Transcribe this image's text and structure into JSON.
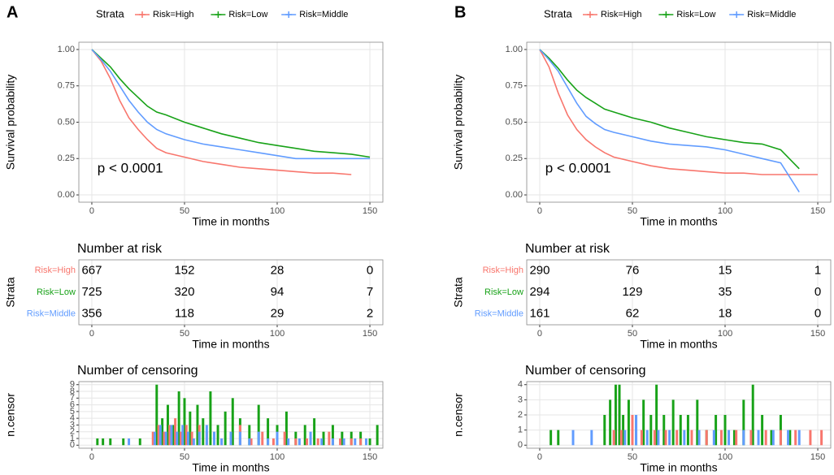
{
  "chart_data": [
    {
      "type": "line",
      "panel": "A",
      "legend_title": "Strata",
      "xlabel": "Time in months",
      "ylabel": "Survival probability",
      "annotation": "p < 0.0001",
      "x": [
        0,
        5,
        10,
        15,
        20,
        25,
        30,
        35,
        40,
        50,
        60,
        70,
        80,
        90,
        100,
        110,
        120,
        130,
        140,
        150
      ],
      "series": [
        {
          "name": "Risk=High",
          "color": "#F8766D",
          "values": [
            1,
            0.92,
            0.8,
            0.65,
            0.53,
            0.45,
            0.38,
            0.32,
            0.29,
            0.26,
            0.23,
            0.21,
            0.19,
            0.18,
            0.17,
            0.16,
            0.15,
            0.15,
            0.14,
            null
          ]
        },
        {
          "name": "Risk=Low",
          "color": "#18A218",
          "values": [
            1,
            0.94,
            0.88,
            0.8,
            0.73,
            0.67,
            0.61,
            0.57,
            0.55,
            0.5,
            0.46,
            0.42,
            0.39,
            0.36,
            0.34,
            0.32,
            0.3,
            0.29,
            0.28,
            0.26
          ]
        },
        {
          "name": "Risk=Middle",
          "color": "#619CFF",
          "values": [
            1,
            0.93,
            0.85,
            0.75,
            0.65,
            0.57,
            0.5,
            0.45,
            0.42,
            0.38,
            0.35,
            0.33,
            0.31,
            0.29,
            0.27,
            0.25,
            0.25,
            0.25,
            0.25,
            0.25
          ]
        }
      ],
      "xlim": [
        -7,
        157
      ],
      "xticks": [
        0,
        50,
        100,
        150
      ],
      "ylim": [
        -0.05,
        1.05
      ],
      "yticks": [
        {
          "value": 0,
          "label": "0.00"
        },
        {
          "value": 0.25,
          "label": "0.25"
        },
        {
          "value": 0.5,
          "label": "0.50"
        },
        {
          "value": 0.75,
          "label": "0.75"
        },
        {
          "value": 1,
          "label": "1.00"
        }
      ],
      "grid": true
    },
    {
      "type": "table",
      "title": "Number at risk",
      "ylabel": "Strata",
      "xlabel": "Time in months",
      "x": [
        0,
        50,
        100,
        150
      ],
      "series": [
        {
          "name": "Risk=High",
          "color": "#F8766D",
          "values": [
            667,
            152,
            28,
            0
          ]
        },
        {
          "name": "Risk=Low",
          "color": "#18A218",
          "values": [
            725,
            320,
            94,
            7
          ]
        },
        {
          "name": "Risk=Middle",
          "color": "#619CFF",
          "values": [
            356,
            118,
            29,
            2
          ]
        }
      ],
      "xlim": [
        -7,
        157
      ],
      "xticks": [
        0,
        50,
        100,
        150
      ],
      "grid": true
    },
    {
      "type": "bar",
      "title": "Number of censoring",
      "ylabel": "n.censor",
      "xlabel": "Time in months",
      "series": [
        {
          "color": "#18A218",
          "x": [
            3,
            6,
            10,
            17,
            26,
            35,
            38,
            41,
            44,
            47,
            50,
            53,
            57,
            60,
            64,
            68,
            72,
            76,
            80,
            85,
            90,
            95,
            100,
            105,
            110,
            115,
            120,
            125,
            130,
            135,
            140,
            145,
            150,
            154
          ],
          "values": [
            1,
            1,
            1,
            1,
            1,
            9,
            4,
            6,
            3,
            8,
            7,
            5,
            6,
            4,
            8,
            3,
            5,
            7,
            4,
            3,
            6,
            4,
            3,
            5,
            2,
            3,
            4,
            2,
            3,
            2,
            2,
            2,
            1,
            3
          ]
        },
        {
          "color": "#F8766D",
          "x": [
            33,
            36,
            39,
            42,
            45,
            48,
            51,
            54,
            58,
            62,
            66,
            70,
            75,
            80,
            86,
            92,
            98,
            104,
            110,
            116,
            122,
            128,
            134,
            140,
            145
          ],
          "values": [
            2,
            3,
            2,
            3,
            4,
            2,
            3,
            2,
            3,
            2,
            2,
            1,
            2,
            3,
            1,
            2,
            1,
            2,
            1,
            1,
            1,
            2,
            1,
            1,
            1
          ]
        },
        {
          "color": "#619CFF",
          "x": [
            20,
            34,
            37,
            40,
            43,
            46,
            49,
            52,
            55,
            58,
            62,
            66,
            70,
            75,
            80,
            85,
            90,
            95,
            100,
            106,
            112,
            118,
            124,
            130,
            136,
            142,
            148
          ],
          "values": [
            1,
            2,
            3,
            2,
            3,
            2,
            3,
            2,
            1,
            2,
            3,
            2,
            1,
            2,
            2,
            1,
            2,
            1,
            2,
            1,
            1,
            2,
            1,
            1,
            1,
            1,
            1
          ]
        }
      ],
      "xlim": [
        -7,
        157
      ],
      "xticks": [
        0,
        50,
        100,
        150
      ],
      "ylim": [
        -0.45,
        9.45
      ],
      "yticks": [
        0,
        1,
        2,
        3,
        4,
        5,
        6,
        7,
        8,
        9
      ],
      "grid": true
    },
    {
      "type": "line",
      "panel": "B",
      "legend_title": "Strata",
      "xlabel": "Time in months",
      "ylabel": "Survival probability",
      "annotation": "p < 0.0001",
      "x": [
        0,
        5,
        10,
        15,
        20,
        25,
        30,
        35,
        40,
        50,
        60,
        70,
        80,
        90,
        100,
        110,
        120,
        130,
        140,
        150
      ],
      "series": [
        {
          "name": "Risk=High",
          "color": "#F8766D",
          "values": [
            1,
            0.88,
            0.7,
            0.55,
            0.45,
            0.38,
            0.33,
            0.29,
            0.26,
            0.23,
            0.2,
            0.18,
            0.17,
            0.16,
            0.15,
            0.15,
            0.14,
            0.14,
            0.14,
            0.14
          ]
        },
        {
          "name": "Risk=Low",
          "color": "#18A218",
          "values": [
            1,
            0.94,
            0.87,
            0.79,
            0.72,
            0.67,
            0.63,
            0.59,
            0.57,
            0.53,
            0.5,
            0.46,
            0.43,
            0.4,
            0.38,
            0.36,
            0.35,
            0.31,
            0.18,
            null
          ]
        },
        {
          "name": "Risk=Middle",
          "color": "#619CFF",
          "values": [
            1,
            0.93,
            0.85,
            0.74,
            0.63,
            0.54,
            0.49,
            0.45,
            0.43,
            0.4,
            0.37,
            0.35,
            0.34,
            0.33,
            0.31,
            0.28,
            0.25,
            0.22,
            0.02,
            null
          ]
        }
      ],
      "xlim": [
        -7,
        157
      ],
      "xticks": [
        0,
        50,
        100,
        150
      ],
      "ylim": [
        -0.05,
        1.05
      ],
      "yticks": [
        {
          "value": 0,
          "label": "0.00"
        },
        {
          "value": 0.25,
          "label": "0.25"
        },
        {
          "value": 0.5,
          "label": "0.50"
        },
        {
          "value": 0.75,
          "label": "0.75"
        },
        {
          "value": 1,
          "label": "1.00"
        }
      ],
      "grid": true
    },
    {
      "type": "table",
      "title": "Number at risk",
      "ylabel": "Strata",
      "xlabel": "Time in months",
      "x": [
        0,
        50,
        100,
        150
      ],
      "series": [
        {
          "name": "Risk=High",
          "color": "#F8766D",
          "values": [
            290,
            76,
            15,
            1
          ]
        },
        {
          "name": "Risk=Low",
          "color": "#18A218",
          "values": [
            294,
            129,
            35,
            0
          ]
        },
        {
          "name": "Risk=Middle",
          "color": "#619CFF",
          "values": [
            161,
            62,
            18,
            0
          ]
        }
      ],
      "xlim": [
        -7,
        157
      ],
      "xticks": [
        0,
        50,
        100,
        150
      ],
      "grid": true
    },
    {
      "type": "bar",
      "title": "Number of censoring",
      "ylabel": "n.censor",
      "xlabel": "Time in months",
      "series": [
        {
          "color": "#18A218",
          "x": [
            6,
            10,
            35,
            38,
            41,
            43,
            45,
            48,
            52,
            56,
            60,
            63,
            67,
            72,
            76,
            80,
            85,
            90,
            95,
            100,
            105,
            110,
            115,
            120,
            125,
            130,
            135
          ],
          "values": [
            1,
            1,
            2,
            3,
            4,
            4,
            2,
            3,
            2,
            3,
            2,
            4,
            2,
            3,
            2,
            2,
            3,
            1,
            2,
            2,
            1,
            3,
            4,
            2,
            1,
            2,
            1
          ]
        },
        {
          "color": "#619CFF",
          "x": [
            18,
            28,
            40,
            46,
            52,
            58,
            64,
            70,
            78,
            86,
            94,
            102,
            110,
            118,
            126,
            134,
            140
          ],
          "values": [
            1,
            1,
            1,
            1,
            2,
            1,
            1,
            1,
            1,
            1,
            1,
            1,
            1,
            1,
            1,
            1,
            1
          ]
        },
        {
          "color": "#F8766D",
          "x": [
            40,
            44,
            50,
            55,
            62,
            68,
            74,
            82,
            90,
            98,
            106,
            114,
            122,
            130,
            138,
            146,
            152
          ],
          "values": [
            1,
            1,
            2,
            1,
            1,
            1,
            1,
            1,
            1,
            1,
            1,
            1,
            1,
            1,
            1,
            1,
            1
          ]
        }
      ],
      "xlim": [
        -7,
        157
      ],
      "xticks": [
        0,
        50,
        100,
        150
      ],
      "ylim": [
        -0.2,
        4.2
      ],
      "yticks": [
        0,
        1,
        2,
        3,
        4
      ],
      "grid": true
    }
  ]
}
